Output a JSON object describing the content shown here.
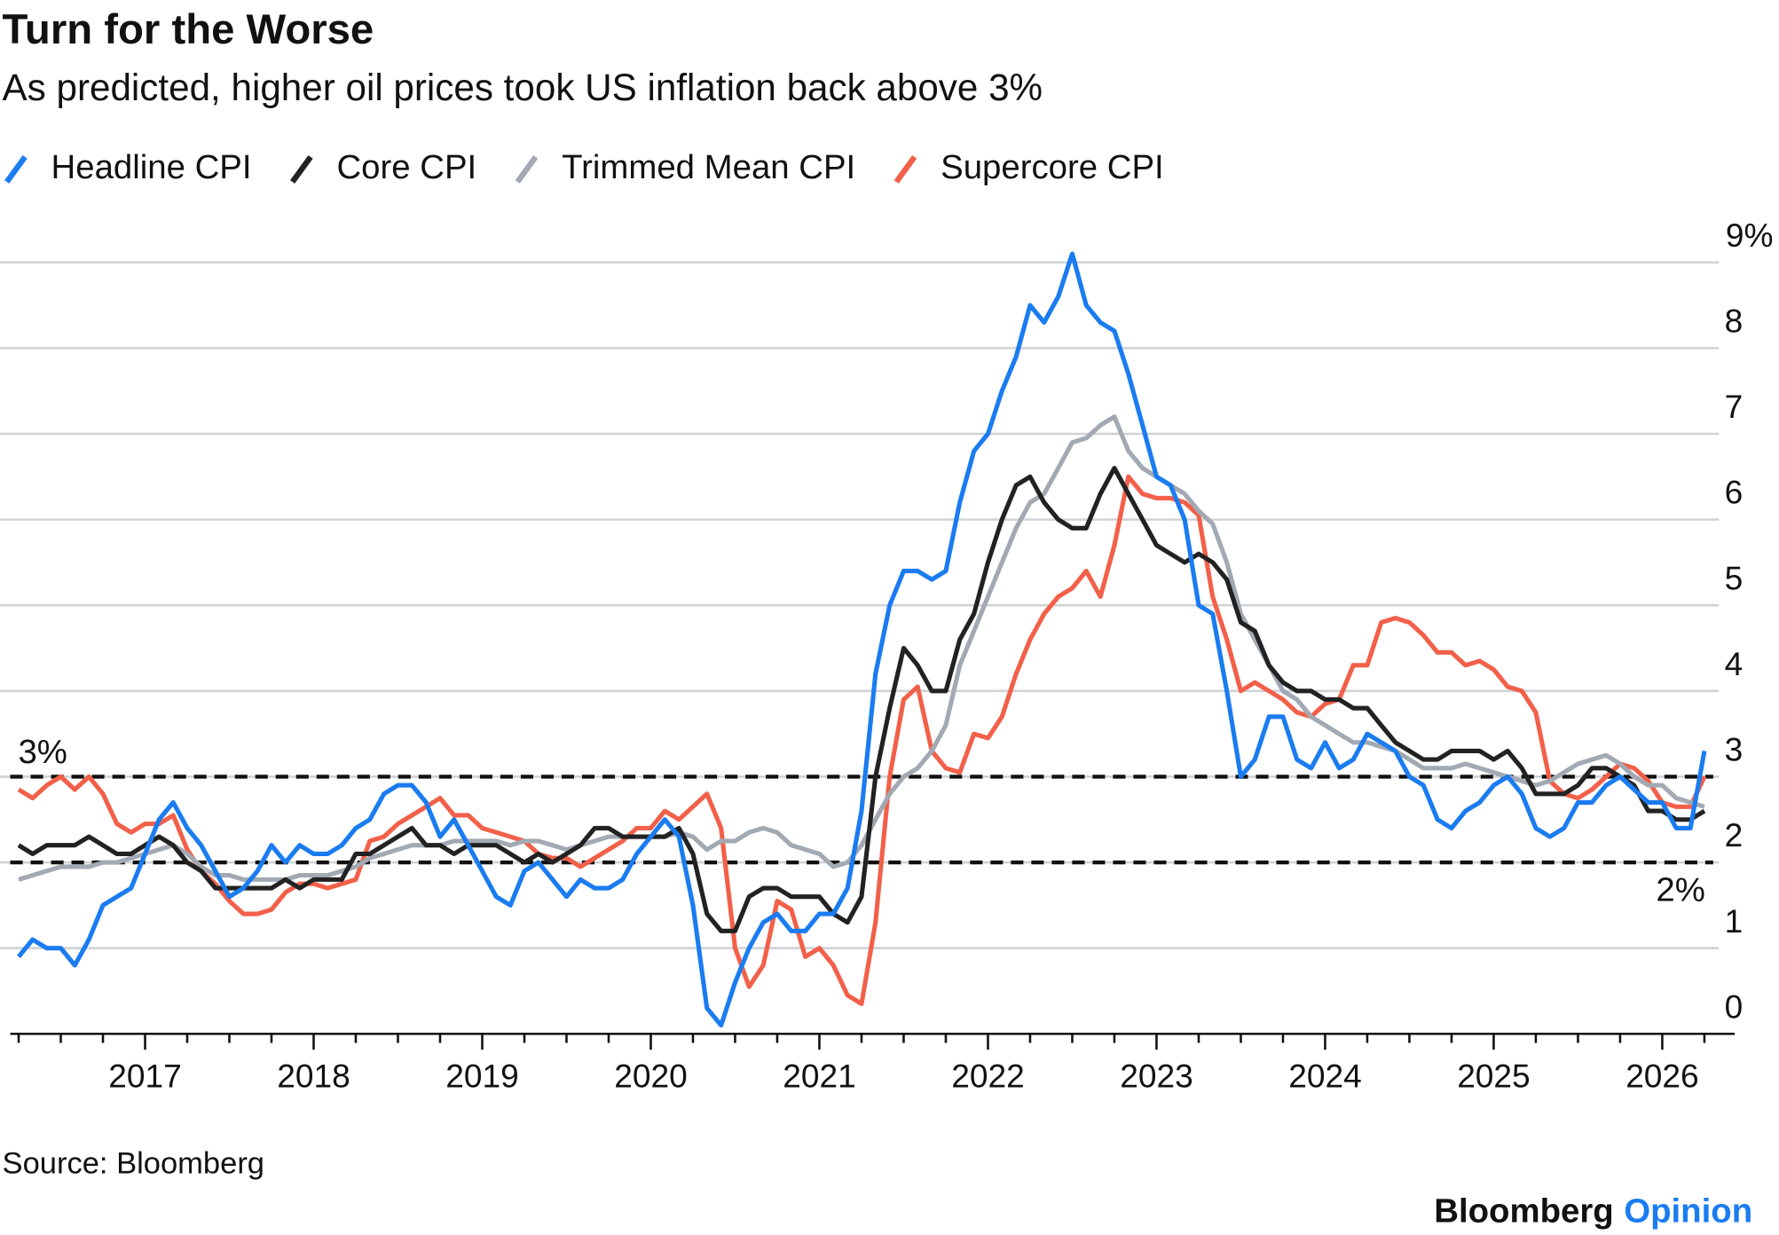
{
  "chart_data": {
    "type": "line",
    "title": "Turn for the Worse",
    "subtitle": "As predicted, higher oil prices took US inflation back above 3%",
    "source": "Source: Bloomberg",
    "brand": "Bloomberg",
    "brand_suffix": "Opinion",
    "legend": "top-left",
    "grid": true,
    "xlim": [
      2016.2,
      2026.43
    ],
    "xticks": [
      2017,
      2018,
      2019,
      2020,
      2021,
      2022,
      2023,
      2024,
      2025,
      2026
    ],
    "xminorticks": [
      2016.25,
      2016.5,
      2016.75,
      2017.25,
      2017.5,
      2017.75,
      2018.25,
      2018.5,
      2018.75,
      2019.25,
      2019.5,
      2019.75,
      2020.25,
      2020.5,
      2020.75,
      2021.25,
      2021.5,
      2021.75,
      2022.25,
      2022.5,
      2022.75,
      2023.25,
      2023.5,
      2023.75,
      2024.25,
      2024.5,
      2024.75,
      2025.25,
      2025.5,
      2025.75,
      2026.25
    ],
    "ylim": [
      0,
      9
    ],
    "yticks": [
      0,
      1,
      2,
      3,
      4,
      5,
      6,
      7,
      8,
      {
        "value": 9,
        "label": "9%"
      }
    ],
    "reference_lines": [
      {
        "value": 3,
        "label": "3%"
      },
      {
        "value": 2,
        "label": "2%"
      }
    ],
    "x": [
      2016.25,
      2016.333,
      2016.417,
      2016.5,
      2016.583,
      2016.667,
      2016.75,
      2016.833,
      2016.917,
      2017,
      2017.083,
      2017.167,
      2017.25,
      2017.333,
      2017.417,
      2017.5,
      2017.583,
      2017.667,
      2017.75,
      2017.833,
      2017.917,
      2018,
      2018.083,
      2018.167,
      2018.25,
      2018.333,
      2018.417,
      2018.5,
      2018.583,
      2018.667,
      2018.75,
      2018.833,
      2018.917,
      2019,
      2019.083,
      2019.167,
      2019.25,
      2019.333,
      2019.417,
      2019.5,
      2019.583,
      2019.667,
      2019.75,
      2019.833,
      2019.917,
      2020,
      2020.083,
      2020.167,
      2020.25,
      2020.333,
      2020.417,
      2020.5,
      2020.583,
      2020.667,
      2020.75,
      2020.833,
      2020.917,
      2021,
      2021.083,
      2021.167,
      2021.25,
      2021.333,
      2021.417,
      2021.5,
      2021.583,
      2021.667,
      2021.75,
      2021.833,
      2021.917,
      2022,
      2022.083,
      2022.167,
      2022.25,
      2022.333,
      2022.417,
      2022.5,
      2022.583,
      2022.667,
      2022.75,
      2022.833,
      2022.917,
      2023,
      2023.083,
      2023.167,
      2023.25,
      2023.333,
      2023.417,
      2023.5,
      2023.583,
      2023.667,
      2023.75,
      2023.833,
      2023.917,
      2024,
      2024.083,
      2024.167,
      2024.25,
      2024.333,
      2024.417,
      2024.5,
      2024.583,
      2024.667,
      2024.75,
      2024.833,
      2024.917,
      2025,
      2025.083,
      2025.167,
      2025.25,
      2025.333,
      2025.417,
      2025.5,
      2025.583,
      2025.667,
      2025.75,
      2025.833,
      2025.917,
      2026,
      2026.083,
      2026.167,
      2026.25
    ],
    "series": [
      {
        "name": "Headline CPI",
        "color": "#1a7cf0",
        "values": [
          0.9,
          1.1,
          1.0,
          1.0,
          0.8,
          1.1,
          1.5,
          1.6,
          1.7,
          2.1,
          2.5,
          2.7,
          2.4,
          2.2,
          1.9,
          1.6,
          1.7,
          1.9,
          2.2,
          2.0,
          2.2,
          2.1,
          2.1,
          2.2,
          2.4,
          2.5,
          2.8,
          2.9,
          2.9,
          2.7,
          2.3,
          2.5,
          2.2,
          1.9,
          1.6,
          1.5,
          1.9,
          2.0,
          1.8,
          1.6,
          1.8,
          1.7,
          1.7,
          1.8,
          2.1,
          2.3,
          2.5,
          2.3,
          1.5,
          0.3,
          0.1,
          0.6,
          1.0,
          1.3,
          1.4,
          1.2,
          1.2,
          1.4,
          1.4,
          1.7,
          2.6,
          4.2,
          5.0,
          5.4,
          5.4,
          5.3,
          5.4,
          6.2,
          6.8,
          7.0,
          7.5,
          7.9,
          8.5,
          8.3,
          8.6,
          9.1,
          8.5,
          8.3,
          8.2,
          7.7,
          7.1,
          6.5,
          6.4,
          6.0,
          5.0,
          4.9,
          4.0,
          3.0,
          3.2,
          3.7,
          3.7,
          3.2,
          3.1,
          3.4,
          3.1,
          3.2,
          3.5,
          3.4,
          3.3,
          3.0,
          2.9,
          2.5,
          2.4,
          2.6,
          2.7,
          2.9,
          3.0,
          2.8,
          2.4,
          2.3,
          2.4,
          2.7,
          2.7,
          2.9,
          3.0,
          2.85,
          2.7,
          2.7,
          2.4,
          2.4,
          3.3
        ]
      },
      {
        "name": "Core CPI",
        "color": "#222222",
        "values": [
          2.2,
          2.1,
          2.2,
          2.2,
          2.2,
          2.3,
          2.2,
          2.1,
          2.1,
          2.2,
          2.3,
          2.2,
          2.0,
          1.9,
          1.7,
          1.7,
          1.7,
          1.7,
          1.7,
          1.8,
          1.7,
          1.8,
          1.8,
          1.8,
          2.1,
          2.1,
          2.2,
          2.3,
          2.4,
          2.2,
          2.2,
          2.1,
          2.2,
          2.2,
          2.2,
          2.1,
          2.0,
          2.1,
          2.0,
          2.1,
          2.2,
          2.4,
          2.4,
          2.3,
          2.3,
          2.3,
          2.3,
          2.4,
          2.1,
          1.4,
          1.2,
          1.2,
          1.6,
          1.7,
          1.7,
          1.6,
          1.6,
          1.6,
          1.4,
          1.3,
          1.6,
          3.0,
          3.8,
          4.5,
          4.3,
          4.0,
          4.0,
          4.6,
          4.9,
          5.5,
          6.0,
          6.4,
          6.5,
          6.2,
          6.0,
          5.9,
          5.9,
          6.3,
          6.6,
          6.3,
          6.0,
          5.7,
          5.6,
          5.5,
          5.6,
          5.5,
          5.3,
          4.8,
          4.7,
          4.3,
          4.1,
          4.0,
          4.0,
          3.9,
          3.9,
          3.8,
          3.8,
          3.6,
          3.4,
          3.3,
          3.2,
          3.2,
          3.3,
          3.3,
          3.3,
          3.2,
          3.3,
          3.1,
          2.8,
          2.8,
          2.8,
          2.9,
          3.1,
          3.1,
          3.0,
          2.9,
          2.6,
          2.6,
          2.5,
          2.5,
          2.6
        ]
      },
      {
        "name": "Trimmed Mean CPI",
        "color": "#a3a9b3",
        "values": [
          1.8,
          1.85,
          1.9,
          1.95,
          1.95,
          1.95,
          2.0,
          2.0,
          2.05,
          2.1,
          2.15,
          2.2,
          2.1,
          1.95,
          1.85,
          1.85,
          1.8,
          1.8,
          1.8,
          1.8,
          1.85,
          1.85,
          1.85,
          1.9,
          1.95,
          2.05,
          2.1,
          2.15,
          2.2,
          2.2,
          2.2,
          2.25,
          2.25,
          2.25,
          2.25,
          2.2,
          2.25,
          2.25,
          2.2,
          2.15,
          2.2,
          2.25,
          2.3,
          2.3,
          2.3,
          2.3,
          2.3,
          2.35,
          2.3,
          2.15,
          2.25,
          2.25,
          2.35,
          2.4,
          2.35,
          2.2,
          2.15,
          2.1,
          1.95,
          2.0,
          2.2,
          2.5,
          2.8,
          3.0,
          3.1,
          3.3,
          3.6,
          4.3,
          4.7,
          5.1,
          5.5,
          5.9,
          6.2,
          6.3,
          6.6,
          6.9,
          6.95,
          7.1,
          7.2,
          6.8,
          6.6,
          6.5,
          6.4,
          6.3,
          6.1,
          5.95,
          5.5,
          4.9,
          4.6,
          4.3,
          4.0,
          3.9,
          3.7,
          3.6,
          3.5,
          3.4,
          3.4,
          3.35,
          3.3,
          3.2,
          3.1,
          3.1,
          3.1,
          3.15,
          3.1,
          3.05,
          3.0,
          2.95,
          2.9,
          2.95,
          3.05,
          3.15,
          3.2,
          3.25,
          3.15,
          3.0,
          2.9,
          2.9,
          2.75,
          2.7,
          2.65
        ]
      },
      {
        "name": "Supercore CPI",
        "color": "#f2604a",
        "values": [
          2.85,
          2.75,
          2.9,
          3.0,
          2.85,
          3.0,
          2.8,
          2.45,
          2.35,
          2.45,
          2.45,
          2.55,
          2.15,
          1.9,
          1.75,
          1.55,
          1.4,
          1.4,
          1.45,
          1.65,
          1.75,
          1.75,
          1.7,
          1.75,
          1.8,
          2.25,
          2.3,
          2.45,
          2.55,
          2.65,
          2.75,
          2.55,
          2.55,
          2.4,
          2.35,
          2.3,
          2.25,
          2.1,
          2.05,
          2.05,
          1.95,
          2.05,
          2.15,
          2.25,
          2.4,
          2.4,
          2.6,
          2.5,
          2.65,
          2.8,
          2.4,
          1.0,
          0.55,
          0.8,
          1.55,
          1.45,
          0.9,
          1.0,
          0.8,
          0.45,
          0.35,
          1.3,
          3.0,
          3.9,
          4.05,
          3.3,
          3.1,
          3.05,
          3.5,
          3.45,
          3.7,
          4.2,
          4.6,
          4.9,
          5.1,
          5.2,
          5.4,
          5.1,
          5.7,
          6.5,
          6.3,
          6.25,
          6.25,
          6.2,
          6.05,
          5.1,
          4.6,
          4.0,
          4.1,
          4.0,
          3.9,
          3.75,
          3.7,
          3.85,
          3.9,
          4.3,
          4.3,
          4.8,
          4.85,
          4.8,
          4.65,
          4.45,
          4.45,
          4.3,
          4.35,
          4.25,
          4.05,
          4.0,
          3.75,
          2.95,
          2.8,
          2.75,
          2.85,
          3.0,
          3.15,
          3.1,
          2.95,
          2.7,
          2.65,
          2.65,
          3.0
        ]
      }
    ]
  }
}
